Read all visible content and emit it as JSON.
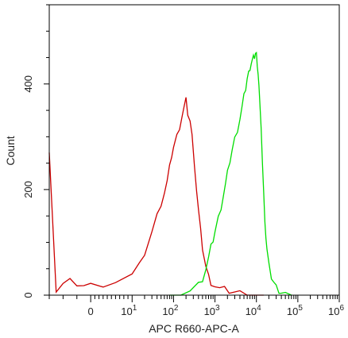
{
  "chart_data": {
    "type": "line",
    "title": "",
    "xlabel": "APC R660-APC-A",
    "ylabel": "Count",
    "x_scale": "biexponential",
    "xlim": [
      -30,
      1000000
    ],
    "ylim": [
      0,
      550
    ],
    "grid": false,
    "x_tick_labels": [
      {
        "value": 0,
        "label": "0"
      },
      {
        "value": 10,
        "base": "10",
        "exp": "1"
      },
      {
        "value": 100,
        "base": "10",
        "exp": "2"
      },
      {
        "value": 1000,
        "base": "10",
        "exp": "3"
      },
      {
        "value": 10000,
        "base": "10",
        "exp": "4"
      },
      {
        "value": 100000,
        "base": "10",
        "exp": "5"
      },
      {
        "value": 1000000,
        "base": "10",
        "exp": "6"
      }
    ],
    "y_ticks": [
      0,
      200,
      400
    ],
    "y_tick_labels": [
      "0",
      "200",
      "400"
    ],
    "series": [
      {
        "color": "#cc0000",
        "x": [
          -30,
          -25,
          -20,
          -15,
          -10,
          -5,
          0,
          3,
          6,
          10,
          15,
          20,
          30,
          40,
          50,
          60,
          70,
          80,
          90,
          100,
          120,
          140,
          160,
          180,
          200,
          220,
          250,
          280,
          320,
          360,
          400,
          450,
          500,
          600,
          700,
          800,
          1000,
          1300,
          1700,
          2200,
          3000,
          4000,
          6000,
          9000,
          15000
        ],
        "values": [
          270,
          8,
          20,
          25,
          22,
          18,
          18,
          22,
          26,
          38,
          55,
          80,
          120,
          150,
          175,
          195,
          215,
          240,
          265,
          280,
          300,
          320,
          340,
          355,
          368,
          345,
          330,
          300,
          250,
          200,
          160,
          120,
          90,
          55,
          35,
          25,
          18,
          12,
          10,
          8,
          6,
          4,
          3,
          2,
          0
        ]
      },
      {
        "color": "#00dd00",
        "x": [
          80,
          150,
          250,
          400,
          500,
          600,
          700,
          800,
          900,
          1000,
          1200,
          1400,
          1600,
          1800,
          2000,
          2300,
          2600,
          3000,
          3500,
          4000,
          4500,
          5000,
          5500,
          6000,
          6500,
          7000,
          7500,
          8000,
          8500,
          9000,
          9500,
          10000,
          10500,
          11000,
          11500,
          12000,
          13000,
          14000,
          15000,
          16000,
          17000,
          18000,
          20000,
          23000,
          26000,
          30000,
          35000,
          40000,
          50000,
          70000
        ],
        "values": [
          0,
          3,
          8,
          20,
          32,
          50,
          70,
          90,
          105,
          120,
          145,
          168,
          190,
          210,
          230,
          255,
          275,
          295,
          315,
          335,
          355,
          375,
          392,
          410,
          420,
          432,
          440,
          445,
          448,
          452,
          458,
          455,
          440,
          420,
          395,
          365,
          320,
          250,
          190,
          145,
          110,
          85,
          55,
          35,
          25,
          15,
          10,
          6,
          3,
          0
        ]
      }
    ]
  }
}
